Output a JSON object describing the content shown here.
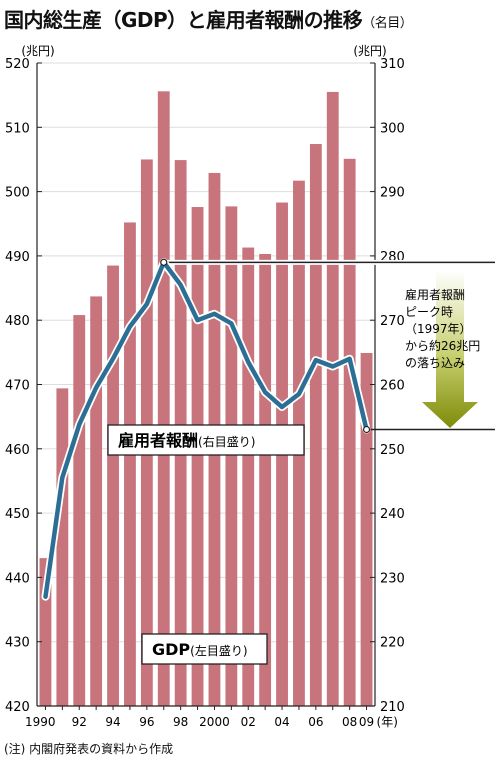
{
  "title": "国内総生産（GDP）と雇用者報酬の推移",
  "title_unit": "（名目）",
  "note": "(注) 内閣府発表の資料から作成",
  "chart_data": {
    "type": "bar+line",
    "x": [
      "1990",
      "1991",
      "1992",
      "1993",
      "1994",
      "1995",
      "1996",
      "1997",
      "1998",
      "1999",
      "2000",
      "2001",
      "2002",
      "2003",
      "2004",
      "2005",
      "2006",
      "2007",
      "2008",
      "2009"
    ],
    "x_tick_labels": [
      "1990",
      "",
      "92",
      "",
      "94",
      "",
      "96",
      "",
      "98",
      "",
      "2000",
      "",
      "02",
      "",
      "04",
      "",
      "06",
      "",
      "08",
      "09"
    ],
    "x_unit": "(年)",
    "left_axis": {
      "unit": "(兆円)",
      "ylim": [
        420,
        520
      ],
      "ticks": [
        420,
        430,
        440,
        450,
        460,
        470,
        480,
        490,
        500,
        510,
        520
      ]
    },
    "right_axis": {
      "unit": "(兆円)",
      "ylim": [
        210,
        310
      ],
      "ticks": [
        210,
        220,
        230,
        240,
        250,
        260,
        270,
        280,
        290,
        300,
        310
      ]
    },
    "series": [
      {
        "name": "GDP",
        "label": "GDP",
        "label_note": "(左目盛り)",
        "type": "bar",
        "axis": "left",
        "color": "#c8747d",
        "values": [
          443.0,
          469.4,
          480.8,
          483.7,
          488.5,
          495.2,
          505.0,
          515.6,
          504.9,
          497.6,
          502.9,
          497.7,
          491.3,
          490.3,
          498.3,
          501.7,
          507.4,
          515.5,
          505.1,
          474.9
        ]
      },
      {
        "name": "雇用者報酬",
        "label": "雇用者報酬",
        "label_note": "(右目盛り)",
        "type": "line",
        "axis": "right",
        "color": "#2d6f94",
        "values": [
          227.0,
          245.5,
          253.8,
          259.5,
          264.0,
          269.0,
          272.5,
          279.0,
          275.5,
          270.0,
          271.0,
          269.5,
          263.5,
          258.8,
          256.5,
          258.5,
          263.8,
          262.8,
          264.0,
          253.0
        ]
      }
    ],
    "annotation": {
      "lines": [
        "雇用者報酬",
        "ピーク時",
        "（1997年）",
        "から約26兆円",
        "の落ち込み"
      ],
      "from_value": 279.0,
      "to_value": 253.0,
      "arrow_color": "#8c9a10"
    }
  }
}
